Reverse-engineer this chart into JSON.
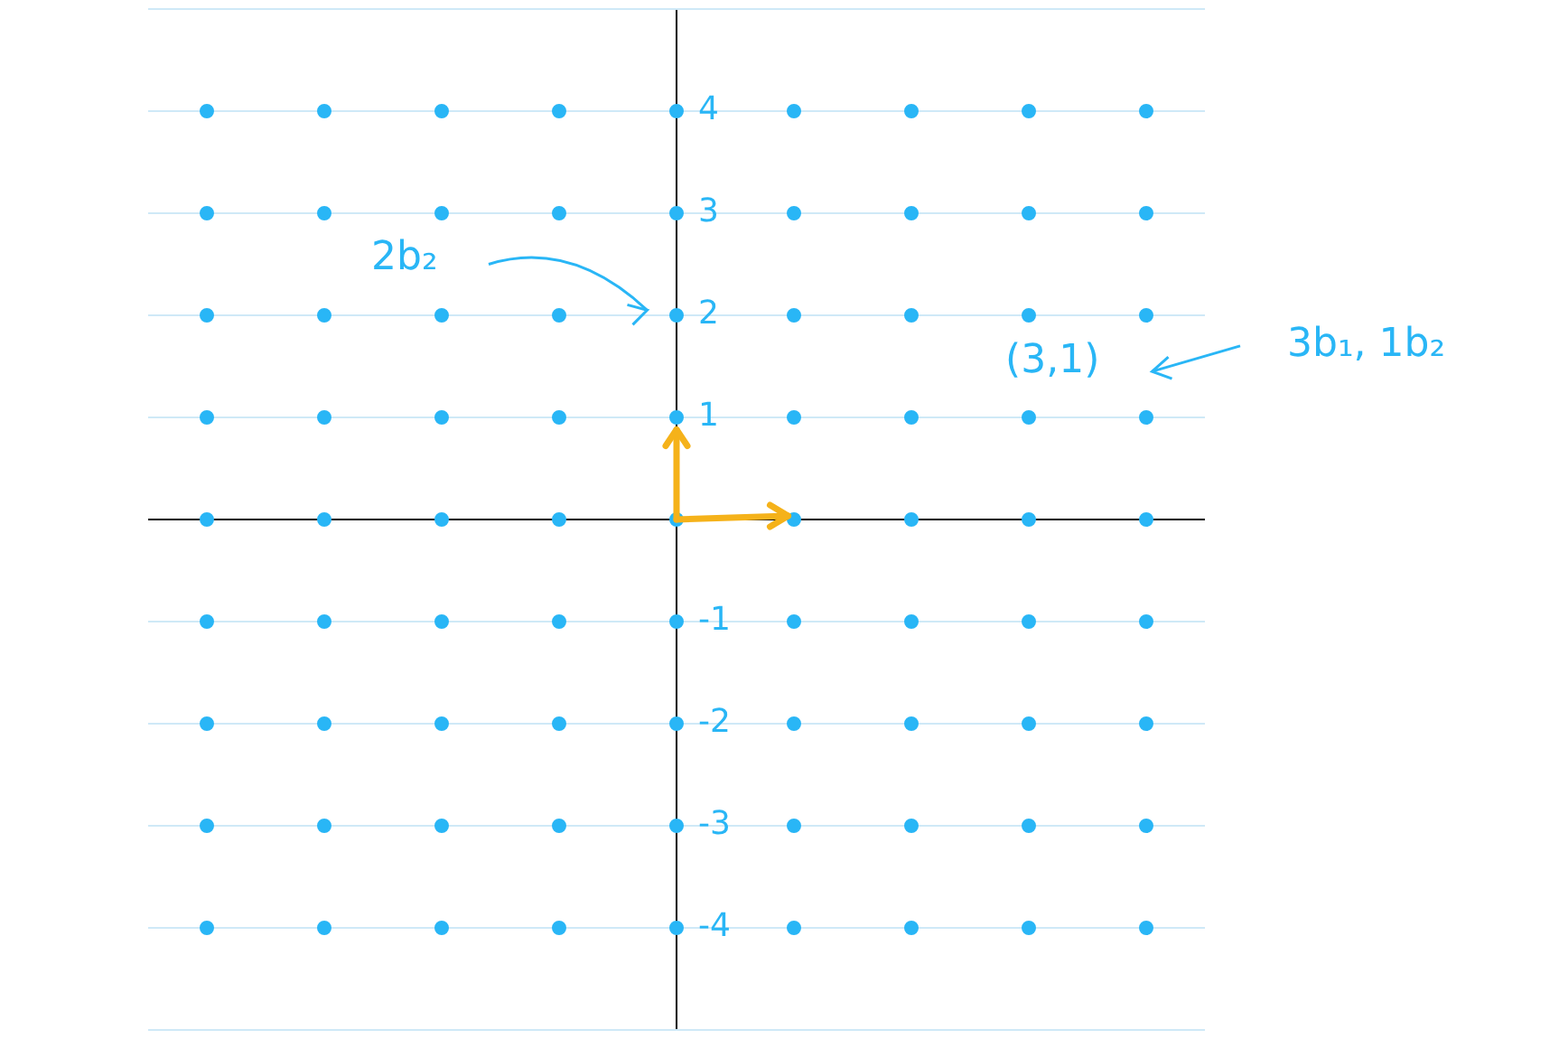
{
  "chart_data": {
    "type": "scatter",
    "marker": "circle",
    "color": "#29b6f6",
    "categories": [
      null,
      null,
      null,
      null,
      null,
      null,
      null,
      null,
      null
    ],
    "series": [
      {
        "values": [
          4,
          4,
          4,
          4,
          4,
          4,
          4,
          4,
          4
        ]
      },
      {
        "values": [
          3,
          3,
          3,
          3,
          3,
          3,
          3,
          3,
          3
        ]
      },
      {
        "values": [
          2,
          2,
          2,
          2,
          2,
          2,
          2,
          2,
          2
        ]
      },
      {
        "values": [
          1,
          1,
          1,
          1,
          1,
          1,
          1,
          1,
          1
        ]
      },
      {
        "values": [
          0,
          0,
          0,
          0,
          0,
          0,
          0,
          0,
          0
        ]
      },
      {
        "values": [
          -1,
          -1,
          -1,
          -1,
          -1,
          -1,
          -1,
          -1,
          -1
        ]
      },
      {
        "values": [
          -2,
          -2,
          -2,
          -2,
          -2,
          -2,
          -2,
          -2,
          -2
        ]
      },
      {
        "values": [
          -3,
          -3,
          -3,
          -3,
          -3,
          -3,
          -3,
          -3,
          -3
        ]
      },
      {
        "values": [
          -4,
          -4,
          -4,
          -4,
          -4,
          -4,
          -4,
          -4,
          -4
        ]
      }
    ],
    "ylim": [
      -5,
      5
    ],
    "yticks": [
      {
        "value": 5,
        "label": null
      },
      4,
      3,
      2,
      1,
      {
        "value": 0,
        "label": null
      },
      -1,
      -2,
      -3,
      -4,
      {
        "value": -5,
        "label": null
      }
    ],
    "tick_labels": "y",
    "grid": "y",
    "annotations": [
      "2b₂",
      "(3,1)",
      "3b₁, 1b₂"
    ]
  }
}
